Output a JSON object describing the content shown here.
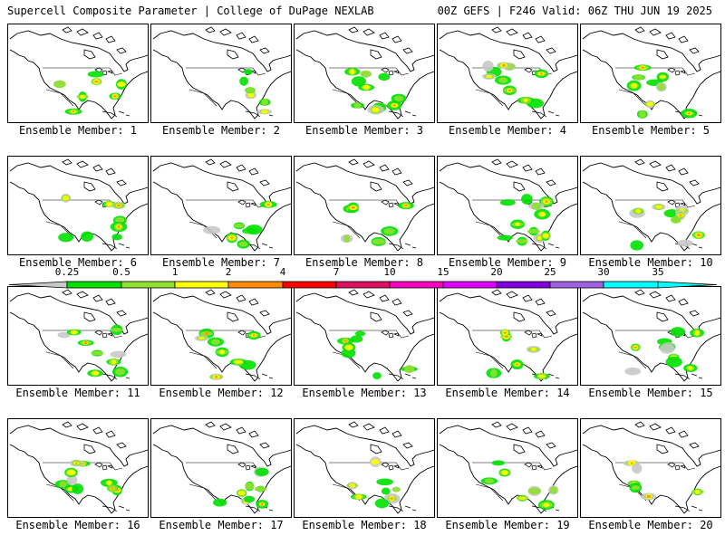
{
  "header": {
    "title": "Supercell Composite Parameter | College of DuPage NEXLAB",
    "run_info": "00Z GEFS | F246 Valid: 06Z THU JUN 19 2025"
  },
  "member_label_prefix": "Ensemble Member:",
  "members": [
    {
      "number": "1"
    },
    {
      "number": "2"
    },
    {
      "number": "3"
    },
    {
      "number": "4"
    },
    {
      "number": "5"
    },
    {
      "number": "6"
    },
    {
      "number": "7"
    },
    {
      "number": "8"
    },
    {
      "number": "9"
    },
    {
      "number": "10"
    },
    {
      "number": "11"
    },
    {
      "number": "12"
    },
    {
      "number": "13"
    },
    {
      "number": "14"
    },
    {
      "number": "15"
    },
    {
      "number": "16"
    },
    {
      "number": "17"
    },
    {
      "number": "18"
    },
    {
      "number": "19"
    },
    {
      "number": "20"
    }
  ],
  "colorbar": {
    "ticks": [
      "0.25",
      "0.5",
      "1",
      "2",
      "4",
      "7",
      "10",
      "15",
      "20",
      "25",
      "30",
      "35"
    ],
    "colors": [
      "#c8c8c8",
      "#00e000",
      "#90e030",
      "#ffff00",
      "#ff8c00",
      "#ff0000",
      "#e01060",
      "#ff00c0",
      "#e000ff",
      "#8000e0",
      "#a060e0",
      "#00ffff"
    ]
  }
}
